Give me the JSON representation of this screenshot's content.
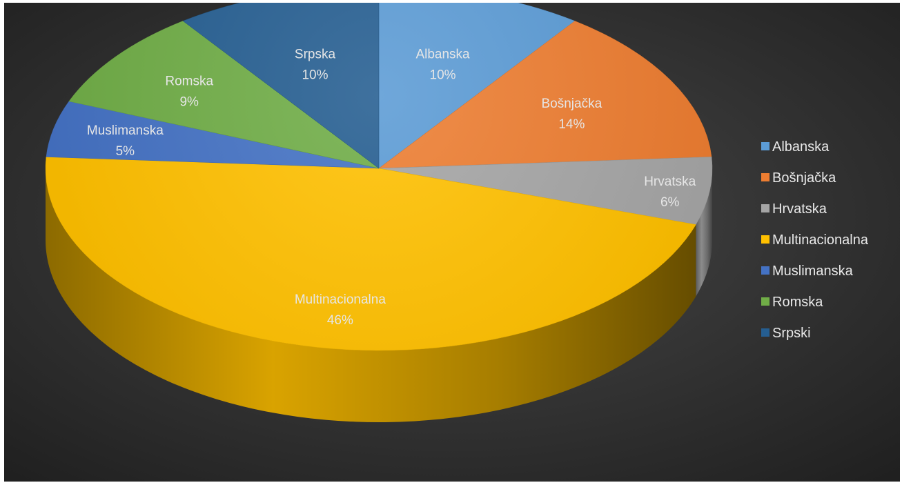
{
  "chart_data": {
    "type": "pie",
    "style": "3d",
    "categories": [
      "Albanska",
      "Bošnjačka",
      "Hrvatska",
      "Multinacionalna",
      "Muslimanska",
      "Romska",
      "Srpski"
    ],
    "values": [
      10,
      14,
      6,
      46,
      5,
      9,
      10
    ],
    "unit": "%",
    "data_labels": [
      {
        "category": "Srpska",
        "value": "10%"
      },
      {
        "category": "Albanska",
        "value": "10%"
      },
      {
        "category": "Bošnjačka",
        "value": "14%"
      },
      {
        "category": "Hrvatska",
        "value": "6%"
      },
      {
        "category": "Multinacionalna",
        "value": "46%"
      },
      {
        "category": "Muslimanska",
        "value": "5%"
      },
      {
        "category": "Romska",
        "value": "9%"
      }
    ],
    "legend": {
      "position": "right",
      "entries": [
        "Albanska",
        "Bošnjačka",
        "Hrvatska",
        "Multinacionalna",
        "Muslimanska",
        "Romska",
        "Srpski"
      ]
    },
    "colors": [
      "#5b9bd5",
      "#ed7d31",
      "#a5a5a5",
      "#ffc000",
      "#4472c4",
      "#70ad47",
      "#255e91"
    ],
    "background": "#2f2f2f"
  }
}
